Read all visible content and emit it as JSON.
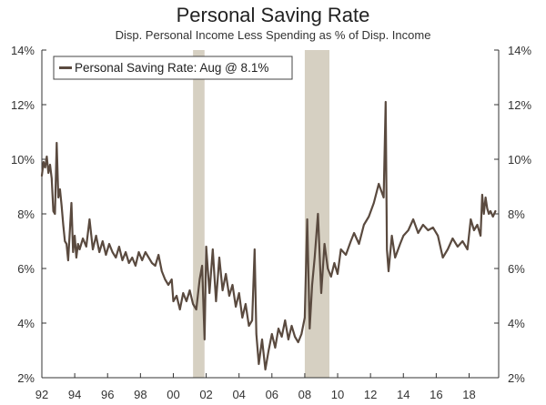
{
  "chart_data": {
    "type": "line",
    "title": "Personal Saving Rate",
    "subtitle": "Disp. Personal Income Less Spending as % of Disp. Income",
    "xlabel": "",
    "ylabel": "",
    "xlim": [
      1992,
      2019.8
    ],
    "ylim": [
      2,
      14
    ],
    "y_ticks": [
      2,
      4,
      6,
      8,
      10,
      12,
      14
    ],
    "y_tick_labels": [
      "2%",
      "4%",
      "6%",
      "8%",
      "10%",
      "12%",
      "14%"
    ],
    "x_ticks": [
      1992,
      1994,
      1996,
      1998,
      2000,
      2002,
      2004,
      2006,
      2008,
      2010,
      2012,
      2014,
      2016,
      2018
    ],
    "x_tick_labels": [
      "92",
      "94",
      "96",
      "98",
      "00",
      "02",
      "04",
      "06",
      "08",
      "10",
      "12",
      "14",
      "16",
      "18"
    ],
    "recessions": [
      [
        2001.2,
        2001.9
      ],
      [
        2008.0,
        2009.5
      ]
    ],
    "legend": {
      "label": "Personal Saving Rate: Aug @ 8.1%",
      "placement": "top-left"
    },
    "colors": {
      "line": "#5a4a3f",
      "recession": "#d6d0c2",
      "axis": "#333333"
    },
    "series": [
      {
        "name": "Personal Saving Rate",
        "x": [
          1992.0,
          1992.1,
          1992.2,
          1992.3,
          1992.4,
          1992.5,
          1992.6,
          1992.7,
          1992.8,
          1992.9,
          1993.0,
          1993.1,
          1993.2,
          1993.3,
          1993.4,
          1993.5,
          1993.6,
          1993.8,
          1993.9,
          1994.0,
          1994.1,
          1994.2,
          1994.3,
          1994.5,
          1994.7,
          1994.9,
          1995.1,
          1995.3,
          1995.5,
          1995.7,
          1995.9,
          1996.1,
          1996.3,
          1996.5,
          1996.7,
          1996.9,
          1997.1,
          1997.3,
          1997.5,
          1997.7,
          1997.9,
          1998.1,
          1998.3,
          1998.5,
          1998.7,
          1998.9,
          1999.1,
          1999.3,
          1999.5,
          1999.7,
          1999.9,
          2000.0,
          2000.2,
          2000.4,
          2000.6,
          2000.8,
          2001.0,
          2001.2,
          2001.4,
          2001.6,
          2001.75,
          2001.9,
          2002.0,
          2002.2,
          2002.4,
          2002.6,
          2002.8,
          2003.0,
          2003.2,
          2003.4,
          2003.6,
          2003.8,
          2004.0,
          2004.2,
          2004.4,
          2004.6,
          2004.8,
          2004.95,
          2005.05,
          2005.2,
          2005.4,
          2005.6,
          2005.8,
          2006.0,
          2006.2,
          2006.4,
          2006.6,
          2006.8,
          2007.0,
          2007.2,
          2007.4,
          2007.6,
          2007.8,
          2008.0,
          2008.15,
          2008.3,
          2008.45,
          2008.6,
          2008.8,
          2009.0,
          2009.2,
          2009.4,
          2009.6,
          2009.8,
          2010.0,
          2010.2,
          2010.5,
          2010.8,
          2011.0,
          2011.3,
          2011.6,
          2011.9,
          2012.2,
          2012.5,
          2012.8,
          2012.92,
          2013.0,
          2013.1,
          2013.3,
          2013.5,
          2013.8,
          2014.0,
          2014.3,
          2014.6,
          2014.9,
          2015.2,
          2015.5,
          2015.8,
          2016.1,
          2016.4,
          2016.7,
          2017.0,
          2017.3,
          2017.6,
          2017.9,
          2018.1,
          2018.3,
          2018.5,
          2018.7,
          2018.8,
          2018.9,
          2019.0,
          2019.1,
          2019.2,
          2019.3,
          2019.45,
          2019.6
        ],
        "values": [
          9.4,
          9.9,
          9.7,
          10.1,
          9.5,
          9.8,
          9.3,
          8.1,
          8.0,
          10.6,
          8.6,
          8.9,
          8.3,
          7.6,
          7.0,
          6.9,
          6.3,
          8.4,
          6.6,
          7.2,
          6.4,
          6.9,
          6.7,
          7.1,
          6.8,
          7.8,
          6.7,
          7.2,
          6.6,
          7.0,
          6.5,
          6.9,
          6.6,
          6.4,
          6.8,
          6.3,
          6.6,
          6.2,
          6.4,
          6.1,
          6.6,
          6.3,
          6.6,
          6.4,
          6.2,
          6.1,
          6.5,
          5.9,
          5.6,
          5.4,
          5.6,
          4.8,
          5.0,
          4.5,
          5.1,
          4.8,
          5.2,
          4.7,
          4.5,
          5.6,
          6.1,
          3.4,
          6.8,
          5.1,
          6.7,
          4.8,
          6.4,
          5.2,
          5.8,
          5.0,
          5.4,
          4.6,
          5.1,
          4.2,
          4.7,
          3.9,
          4.1,
          6.7,
          3.6,
          2.5,
          3.4,
          2.3,
          3.0,
          3.6,
          3.1,
          3.8,
          3.5,
          4.1,
          3.4,
          3.9,
          3.5,
          3.3,
          3.6,
          4.2,
          7.8,
          3.8,
          5.4,
          6.4,
          8.0,
          5.1,
          6.9,
          6.0,
          5.7,
          6.2,
          5.8,
          6.7,
          6.5,
          7.0,
          7.3,
          6.9,
          7.6,
          7.9,
          8.4,
          9.1,
          8.6,
          12.1,
          6.7,
          5.9,
          7.2,
          6.4,
          6.9,
          7.2,
          7.4,
          7.8,
          7.3,
          7.6,
          7.4,
          7.5,
          7.2,
          6.4,
          6.7,
          7.1,
          6.8,
          7.0,
          6.7,
          7.8,
          7.4,
          7.6,
          7.2,
          8.7,
          8.0,
          8.6,
          8.2,
          8.0,
          8.1,
          7.9,
          8.1
        ]
      }
    ]
  }
}
